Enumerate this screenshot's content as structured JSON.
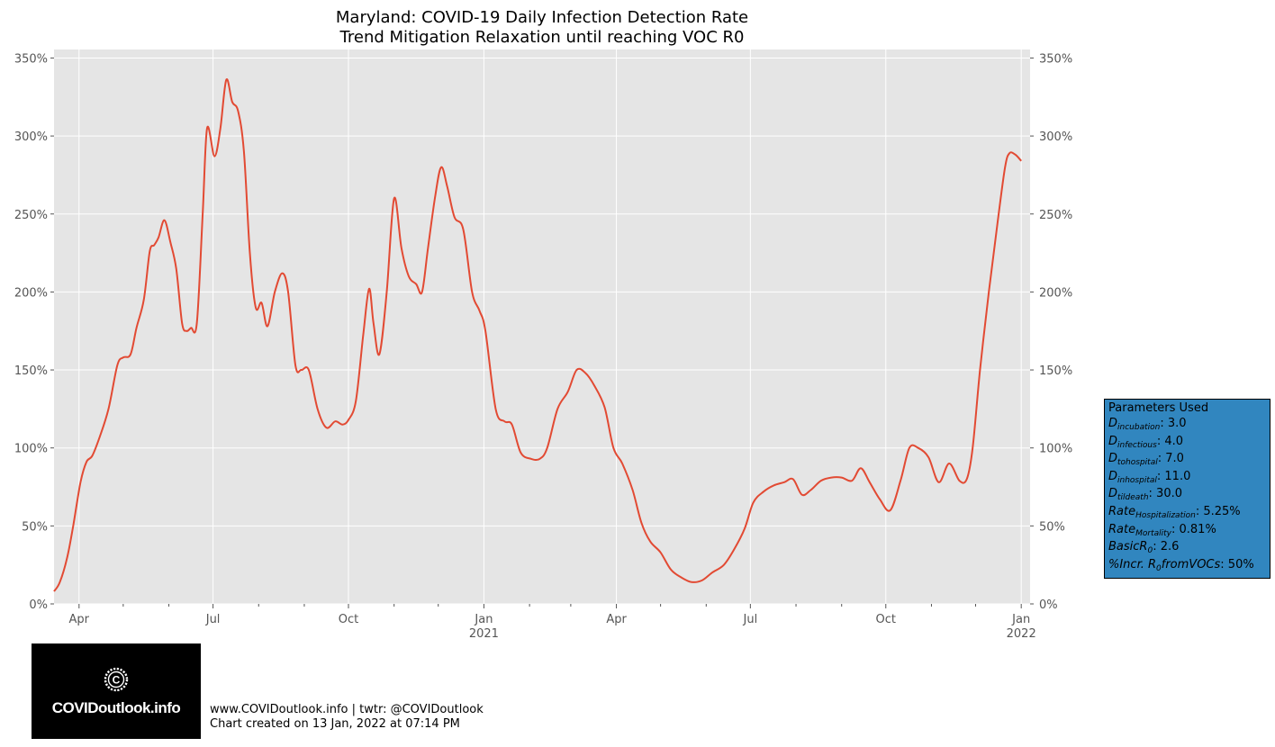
{
  "chart_data": {
    "type": "line",
    "title": "Maryland: COVID-19 Daily Infection Detection Rate",
    "subtitle": "Trend Mitigation Relaxation until reaching VOC R0",
    "y_unit": "%",
    "ylim": [
      0,
      360
    ],
    "yticks": [
      0,
      50,
      100,
      150,
      200,
      250,
      300,
      350
    ],
    "ytick_labels": [
      "0%",
      "50%",
      "100%",
      "150%",
      "200%",
      "250%",
      "300%",
      "350%"
    ],
    "xlim": [
      "2020-03-15",
      "2022-01-07"
    ],
    "xticks": [
      {
        "date": "2020-04-01",
        "label": "Apr",
        "year": ""
      },
      {
        "date": "2020-07-01",
        "label": "Jul",
        "year": ""
      },
      {
        "date": "2020-10-01",
        "label": "Oct",
        "year": ""
      },
      {
        "date": "2021-01-01",
        "label": "Jan",
        "year": "2021"
      },
      {
        "date": "2021-04-01",
        "label": "Apr",
        "year": ""
      },
      {
        "date": "2021-07-01",
        "label": "Jul",
        "year": ""
      },
      {
        "date": "2021-10-01",
        "label": "Oct",
        "year": ""
      },
      {
        "date": "2022-01-01",
        "label": "Jan",
        "year": "2022"
      }
    ],
    "minor_ticks": [
      "2020-05-01",
      "2020-06-01",
      "2020-08-01",
      "2020-09-01",
      "2020-11-01",
      "2020-12-01",
      "2021-02-01",
      "2021-03-01",
      "2021-05-01",
      "2021-06-01",
      "2021-08-01",
      "2021-09-01",
      "2021-11-01",
      "2021-12-01"
    ],
    "grid": true,
    "series": [
      {
        "color": "#e24a33",
        "points": [
          [
            "2020-03-15",
            8
          ],
          [
            "2020-03-19",
            14
          ],
          [
            "2020-03-24",
            30
          ],
          [
            "2020-03-28",
            50
          ],
          [
            "2020-04-02",
            78
          ],
          [
            "2020-04-06",
            91
          ],
          [
            "2020-04-10",
            95
          ],
          [
            "2020-04-15",
            107
          ],
          [
            "2020-04-21",
            125
          ],
          [
            "2020-04-27",
            153
          ],
          [
            "2020-05-01",
            158
          ],
          [
            "2020-05-06",
            160
          ],
          [
            "2020-05-10",
            177
          ],
          [
            "2020-05-15",
            195
          ],
          [
            "2020-05-19",
            226
          ],
          [
            "2020-05-22",
            230
          ],
          [
            "2020-05-25",
            235
          ],
          [
            "2020-05-29",
            246
          ],
          [
            "2020-06-02",
            232
          ],
          [
            "2020-06-06",
            215
          ],
          [
            "2020-06-10",
            180
          ],
          [
            "2020-06-13",
            175
          ],
          [
            "2020-06-16",
            177
          ],
          [
            "2020-06-20",
            180
          ],
          [
            "2020-06-24",
            250
          ],
          [
            "2020-06-27",
            305
          ],
          [
            "2020-07-02",
            287
          ],
          [
            "2020-07-06",
            305
          ],
          [
            "2020-07-10",
            336
          ],
          [
            "2020-07-14",
            322
          ],
          [
            "2020-07-18",
            316
          ],
          [
            "2020-07-22",
            290
          ],
          [
            "2020-07-26",
            225
          ],
          [
            "2020-07-30",
            190
          ],
          [
            "2020-08-03",
            193
          ],
          [
            "2020-08-07",
            178
          ],
          [
            "2020-08-12",
            200
          ],
          [
            "2020-08-17",
            212
          ],
          [
            "2020-08-21",
            200
          ],
          [
            "2020-08-26",
            153
          ],
          [
            "2020-08-30",
            150
          ],
          [
            "2020-09-04",
            150
          ],
          [
            "2020-09-10",
            125
          ],
          [
            "2020-09-16",
            113
          ],
          [
            "2020-09-22",
            117
          ],
          [
            "2020-09-27",
            115
          ],
          [
            "2020-10-01",
            118
          ],
          [
            "2020-10-06",
            130
          ],
          [
            "2020-10-11",
            172
          ],
          [
            "2020-10-15",
            202
          ],
          [
            "2020-10-18",
            180
          ],
          [
            "2020-10-22",
            160
          ],
          [
            "2020-10-27",
            200
          ],
          [
            "2020-11-01",
            260
          ],
          [
            "2020-11-06",
            228
          ],
          [
            "2020-11-11",
            210
          ],
          [
            "2020-11-16",
            205
          ],
          [
            "2020-11-20",
            200
          ],
          [
            "2020-11-24",
            228
          ],
          [
            "2020-11-29",
            262
          ],
          [
            "2020-12-03",
            280
          ],
          [
            "2020-12-07",
            268
          ],
          [
            "2020-12-12",
            248
          ],
          [
            "2020-12-18",
            240
          ],
          [
            "2020-12-24",
            200
          ],
          [
            "2020-12-29",
            188
          ],
          [
            "2021-01-02",
            175
          ],
          [
            "2021-01-09",
            125
          ],
          [
            "2021-01-15",
            117
          ],
          [
            "2021-01-20",
            115
          ],
          [
            "2021-01-26",
            97
          ],
          [
            "2021-02-02",
            93
          ],
          [
            "2021-02-08",
            93
          ],
          [
            "2021-02-13",
            100
          ],
          [
            "2021-02-20",
            125
          ],
          [
            "2021-02-27",
            136
          ],
          [
            "2021-03-05",
            150
          ],
          [
            "2021-03-11",
            148
          ],
          [
            "2021-03-17",
            140
          ],
          [
            "2021-03-24",
            126
          ],
          [
            "2021-03-30",
            100
          ],
          [
            "2021-04-05",
            90
          ],
          [
            "2021-04-12",
            73
          ],
          [
            "2021-04-18",
            52
          ],
          [
            "2021-04-24",
            40
          ],
          [
            "2021-05-01",
            33
          ],
          [
            "2021-05-08",
            22
          ],
          [
            "2021-05-15",
            17
          ],
          [
            "2021-05-22",
            14
          ],
          [
            "2021-05-29",
            15
          ],
          [
            "2021-06-05",
            20
          ],
          [
            "2021-06-13",
            25
          ],
          [
            "2021-06-20",
            35
          ],
          [
            "2021-06-27",
            48
          ],
          [
            "2021-07-03",
            65
          ],
          [
            "2021-07-10",
            72
          ],
          [
            "2021-07-17",
            76
          ],
          [
            "2021-07-24",
            78
          ],
          [
            "2021-07-30",
            80
          ],
          [
            "2021-08-05",
            70
          ],
          [
            "2021-08-11",
            73
          ],
          [
            "2021-08-18",
            79
          ],
          [
            "2021-08-25",
            81
          ],
          [
            "2021-09-01",
            81
          ],
          [
            "2021-09-08",
            79
          ],
          [
            "2021-09-14",
            87
          ],
          [
            "2021-09-20",
            78
          ],
          [
            "2021-09-27",
            67
          ],
          [
            "2021-10-04",
            60
          ],
          [
            "2021-10-11",
            79
          ],
          [
            "2021-10-17",
            100
          ],
          [
            "2021-10-23",
            100
          ],
          [
            "2021-10-30",
            94
          ],
          [
            "2021-11-06",
            78
          ],
          [
            "2021-11-13",
            90
          ],
          [
            "2021-11-20",
            79
          ],
          [
            "2021-11-25",
            80
          ],
          [
            "2021-11-29",
            100
          ],
          [
            "2021-12-04",
            150
          ],
          [
            "2021-12-10",
            200
          ],
          [
            "2021-12-16",
            245
          ],
          [
            "2021-12-21",
            280
          ],
          [
            "2021-12-24",
            289
          ],
          [
            "2021-12-28",
            288
          ],
          [
            "2022-01-01",
            284
          ]
        ]
      }
    ]
  },
  "params": {
    "header": "Parameters Used",
    "rows": [
      {
        "name": "D",
        "sub": "incubation",
        "value": ": 3.0"
      },
      {
        "name": "D",
        "sub": "infectious",
        "value": ": 4.0"
      },
      {
        "name": "D",
        "sub": "tohospital",
        "value": ": 7.0"
      },
      {
        "name": "D",
        "sub": "inhospital",
        "value": ": 11.0"
      },
      {
        "name": "D",
        "sub": "tildeath",
        "value": ": 30.0"
      },
      {
        "name": "Rate",
        "sub": "Hospitalization",
        "value": ": 5.25%"
      },
      {
        "name": "Rate",
        "sub": "Mortality",
        "value": ": 0.81%"
      },
      {
        "name": "BasicR",
        "sub": "0",
        "value": ": 2.6"
      },
      {
        "name": "%Incr. R",
        "sub": "0",
        "name2": "fromVOCs",
        "value": ": 50%"
      }
    ]
  },
  "logo": {
    "brand": "COVIDoutlook.info",
    "emblem_letter": "C"
  },
  "footer": {
    "line1": "www.COVIDoutlook.info | twtr: @COVIDoutlook",
    "line2": "Chart created on 13 Jan, 2022 at 07:14 PM"
  },
  "colors": {
    "plot_bg": "#e5e5e5",
    "line": "#e24a33",
    "params_bg": "#3186bf",
    "grid": "#ffffff"
  }
}
